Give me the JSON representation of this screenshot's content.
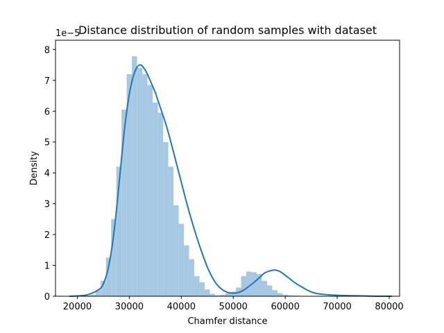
{
  "chart_data": {
    "type": "bar",
    "title": "Distance distribution of random samples with dataset",
    "xlabel": "Chamfer distance",
    "ylabel": "Density",
    "y_offset_label": "1e−5",
    "xlim": [
      15800,
      82000
    ],
    "ylim": [
      0,
      8.3
    ],
    "x_ticks": [
      20000,
      30000,
      40000,
      50000,
      60000,
      70000,
      80000
    ],
    "x_tick_labels": [
      "20000",
      "30000",
      "40000",
      "50000",
      "60000",
      "70000",
      "80000"
    ],
    "y_ticks": [
      0,
      1,
      2,
      3,
      4,
      5,
      6,
      7,
      8
    ],
    "y_tick_labels": [
      "0",
      "1",
      "2",
      "3",
      "4",
      "5",
      "6",
      "7",
      "8"
    ],
    "bin_width": 1000,
    "bins_left_edges": [
      18500,
      19500,
      20500,
      21500,
      22500,
      23500,
      24500,
      25500,
      26500,
      27500,
      28500,
      29500,
      30500,
      31500,
      32500,
      33500,
      34500,
      35500,
      36500,
      37500,
      38500,
      39500,
      40500,
      41500,
      42500,
      43500,
      44500,
      45500,
      46500,
      47500,
      48500,
      49500,
      50500,
      51500,
      52500,
      53500,
      54500,
      55500,
      56500,
      57500,
      58500,
      59500,
      60500,
      61500,
      62500,
      63500,
      64500,
      65500,
      66500,
      67500,
      68500,
      69500,
      70500,
      71500,
      72500,
      73500,
      74500,
      75500,
      76500,
      77500,
      78500,
      79500
    ],
    "histogram_density": [
      0.0,
      0.0,
      0.01,
      0.02,
      0.05,
      0.2,
      0.5,
      1.25,
      2.5,
      4.2,
      6.05,
      7.2,
      7.78,
      7.4,
      7.2,
      6.85,
      6.28,
      5.95,
      5.0,
      4.2,
      2.95,
      2.35,
      1.65,
      1.2,
      0.65,
      0.45,
      0.22,
      0.08,
      0.03,
      0.05,
      0.1,
      0.15,
      0.28,
      0.65,
      0.8,
      0.78,
      0.72,
      0.5,
      0.35,
      0.2,
      0.1,
      0.05,
      0.03,
      0.02,
      0.01,
      0.01,
      0.01,
      0.0,
      0.0,
      0.0,
      0.0,
      0.0,
      0.0,
      0.0,
      0.0,
      0.0,
      0.0,
      0.0,
      0.0,
      0.0,
      0.0,
      0.0
    ],
    "kde_x": [
      18500,
      20000,
      22000,
      24000,
      25000,
      26000,
      27000,
      28000,
      29000,
      30000,
      31000,
      32000,
      33000,
      34000,
      35000,
      36000,
      37000,
      38000,
      39000,
      40000,
      41000,
      42000,
      43000,
      44000,
      45000,
      46000,
      47000,
      48000,
      49000,
      50000,
      51000,
      52000,
      53000,
      54000,
      55000,
      56000,
      57000,
      58000,
      59000,
      60000,
      61000,
      62000,
      63000,
      64000,
      65000,
      66000,
      68000,
      70000,
      72000,
      75000,
      78000,
      80500
    ],
    "kde_y": [
      0.0,
      0.01,
      0.05,
      0.2,
      0.4,
      0.95,
      2.0,
      3.6,
      5.3,
      6.55,
      7.25,
      7.5,
      7.35,
      7.0,
      6.6,
      6.1,
      5.6,
      5.0,
      4.35,
      3.7,
      3.05,
      2.45,
      1.9,
      1.4,
      0.95,
      0.6,
      0.35,
      0.2,
      0.12,
      0.1,
      0.12,
      0.2,
      0.32,
      0.45,
      0.6,
      0.75,
      0.82,
      0.85,
      0.8,
      0.68,
      0.55,
      0.42,
      0.32,
      0.22,
      0.14,
      0.09,
      0.05,
      0.03,
      0.02,
      0.01,
      0.0,
      0.0
    ],
    "bar_color": "#a6c8e2",
    "line_color": "#1f77b4"
  }
}
